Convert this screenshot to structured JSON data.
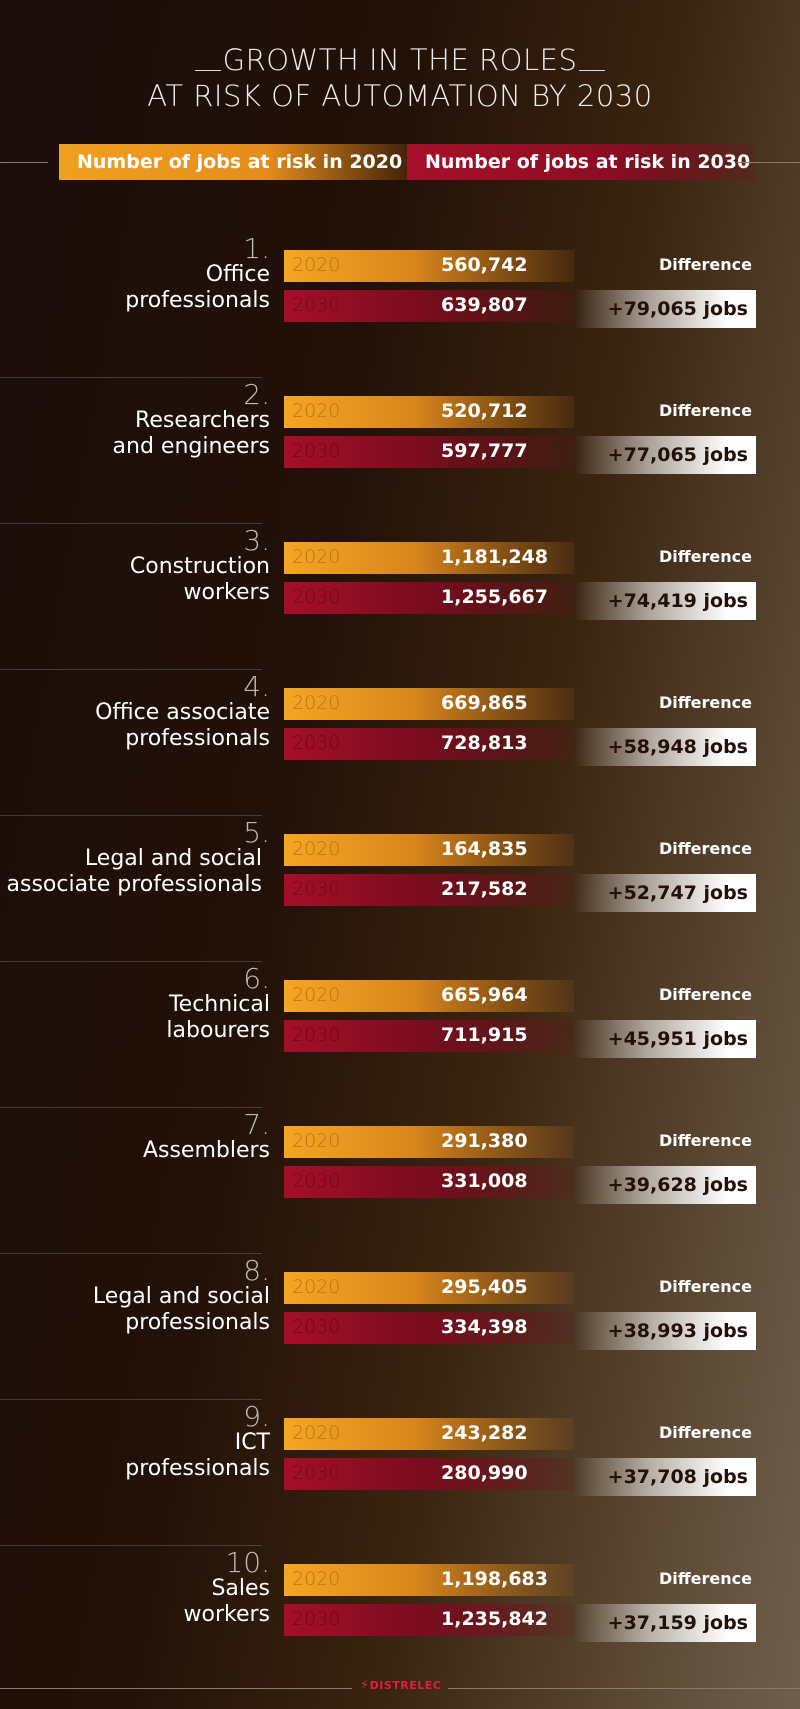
{
  "title": {
    "line1": "GROWTH IN THE ROLES",
    "line2": "AT RISK OF AUTOMATION BY 2030"
  },
  "legend": {
    "label_2020": "Number of jobs at risk in 2020",
    "label_2030": "Number of jobs at risk in 2030"
  },
  "colors": {
    "bar_2020": "#f5a623",
    "bar_2030": "#a50f28",
    "brand": "#e0203a"
  },
  "chart_data": {
    "type": "table",
    "title": "GROWTH IN THE ROLES AT RISK OF AUTOMATION BY 2030",
    "series": [
      {
        "name": "Number of jobs at risk in 2020",
        "values": [
          560742,
          520712,
          1181248,
          669865,
          164835,
          665964,
          291380,
          295405,
          243282,
          1198683
        ]
      },
      {
        "name": "Number of jobs at risk in 2030",
        "values": [
          639807,
          597777,
          1255667,
          728813,
          217582,
          711915,
          331008,
          334398,
          280990,
          1235842
        ]
      }
    ],
    "categories": [
      "Office professionals",
      "Researchers and engineers",
      "Construction workers",
      "Office associate professionals",
      "Legal and social associate professionals",
      "Technical labourers",
      "Assemblers",
      "Legal and social professionals",
      "ICT professionals",
      "Sales workers"
    ],
    "rows": [
      {
        "rank": "1.",
        "line1": "Office",
        "line2": "professionals",
        "y2020_label": "2020",
        "y2030_label": "2030",
        "v2020": "560,742",
        "v2030": "639,807",
        "diff_label": "Difference",
        "diff": "+79,065 jobs"
      },
      {
        "rank": "2.",
        "line1": "Researchers",
        "line2": "and engineers",
        "y2020_label": "2020",
        "y2030_label": "2030",
        "v2020": "520,712",
        "v2030": "597,777",
        "diff_label": "Difference",
        "diff": "+77,065 jobs"
      },
      {
        "rank": "3.",
        "line1": "Construction",
        "line2": "workers",
        "y2020_label": "2020",
        "y2030_label": "2030",
        "v2020": "1,181,248",
        "v2030": "1,255,667",
        "diff_label": "Difference",
        "diff": "+74,419 jobs"
      },
      {
        "rank": "4.",
        "line1": "Office associate",
        "line2": "professionals",
        "y2020_label": "2020",
        "y2030_label": "2030",
        "v2020": "669,865",
        "v2030": "728,813",
        "diff_label": "Difference",
        "diff": "+58,948 jobs"
      },
      {
        "rank": "5.",
        "line1": "Legal and social",
        "line2": "associate professionals",
        "y2020_label": "2020",
        "y2030_label": "2030",
        "v2020": "164,835",
        "v2030": "217,582",
        "diff_label": "Difference",
        "diff": "+52,747 jobs"
      },
      {
        "rank": "6.",
        "line1": "Technical",
        "line2": "labourers",
        "y2020_label": "2020",
        "y2030_label": "2030",
        "v2020": "665,964",
        "v2030": "711,915",
        "diff_label": "Difference",
        "diff": "+45,951 jobs"
      },
      {
        "rank": "7.",
        "line1": "Assemblers",
        "line2": "",
        "y2020_label": "2020",
        "y2030_label": "2030",
        "v2020": "291,380",
        "v2030": "331,008",
        "diff_label": "Difference",
        "diff": "+39,628 jobs"
      },
      {
        "rank": "8.",
        "line1": "Legal and social",
        "line2": "professionals",
        "y2020_label": "2020",
        "y2030_label": "2030",
        "v2020": "295,405",
        "v2030": "334,398",
        "diff_label": "Difference",
        "diff": "+38,993 jobs"
      },
      {
        "rank": "9.",
        "line1": "ICT",
        "line2": "professionals",
        "y2020_label": "2020",
        "y2030_label": "2030",
        "v2020": "243,282",
        "v2030": "280,990",
        "diff_label": "Difference",
        "diff": "+37,708 jobs"
      },
      {
        "rank": "10.",
        "line1": "Sales",
        "line2": "workers",
        "y2020_label": "2020",
        "y2030_label": "2030",
        "v2020": "1,198,683",
        "v2030": "1,235,842",
        "diff_label": "Difference",
        "diff": "+37,159 jobs"
      }
    ]
  },
  "footer": {
    "brand": "DISTRELEC",
    "brand_icon": "bolt-icon"
  }
}
